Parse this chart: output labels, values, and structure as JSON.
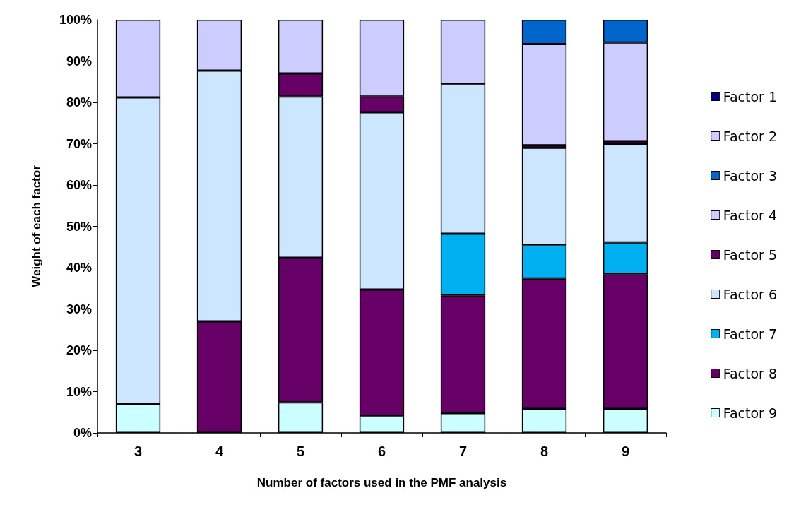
{
  "chart_data": {
    "type": "bar",
    "stacked": true,
    "xlabel": "Number of factors used in the PMF analysis",
    "ylabel": "Weight of each factor",
    "categories": [
      "3",
      "4",
      "5",
      "6",
      "7",
      "8",
      "9"
    ],
    "ylim": [
      0,
      100
    ],
    "yticks": [
      {
        "value": 0,
        "label": "0%"
      },
      {
        "value": 10,
        "label": "10%"
      },
      {
        "value": 20,
        "label": "20%"
      },
      {
        "value": 30,
        "label": "30%"
      },
      {
        "value": 40,
        "label": "40%"
      },
      {
        "value": 50,
        "label": "50%"
      },
      {
        "value": 60,
        "label": "60%"
      },
      {
        "value": 70,
        "label": "70%"
      },
      {
        "value": 80,
        "label": "80%"
      },
      {
        "value": 90,
        "label": "90%"
      },
      {
        "value": 100,
        "label": "100%"
      }
    ],
    "grid": false,
    "legend": "right",
    "series": [
      {
        "name": "Factor 9",
        "color": "#ccffff",
        "values": [
          7,
          null,
          7.4,
          4,
          4.8,
          5.8,
          5.8
        ]
      },
      {
        "name": "Factor 8",
        "color": "#660066",
        "values": [
          null,
          27,
          35,
          30.7,
          28.5,
          31.6,
          32.6
        ]
      },
      {
        "name": "Factor 7",
        "color": "#00b0f0",
        "values": [
          null,
          null,
          null,
          null,
          14.9,
          8,
          7.7
        ]
      },
      {
        "name": "Factor 6",
        "color": "#cce6ff",
        "values": [
          74.2,
          60.7,
          39,
          42.9,
          36.2,
          23.6,
          23.8
        ]
      },
      {
        "name": "Factor 5",
        "color": "#660066",
        "values": [
          null,
          null,
          5.6,
          3.8,
          null,
          0.6,
          0.7
        ]
      },
      {
        "name": "Factor 4",
        "color": "#ccccff",
        "values": [
          18.8,
          12.3,
          13,
          18.6,
          15.6,
          24.5,
          23.9
        ]
      },
      {
        "name": "Factor 3",
        "color": "#0066cc",
        "values": [
          null,
          null,
          null,
          null,
          null,
          5.9,
          5.5
        ]
      },
      {
        "name": "Factor 2",
        "color": "#ccccff",
        "values": [
          null,
          null,
          null,
          null,
          null,
          null,
          null
        ]
      },
      {
        "name": "Factor 1",
        "color": "#000080",
        "values": [
          null,
          null,
          null,
          null,
          null,
          null,
          null
        ]
      }
    ]
  }
}
